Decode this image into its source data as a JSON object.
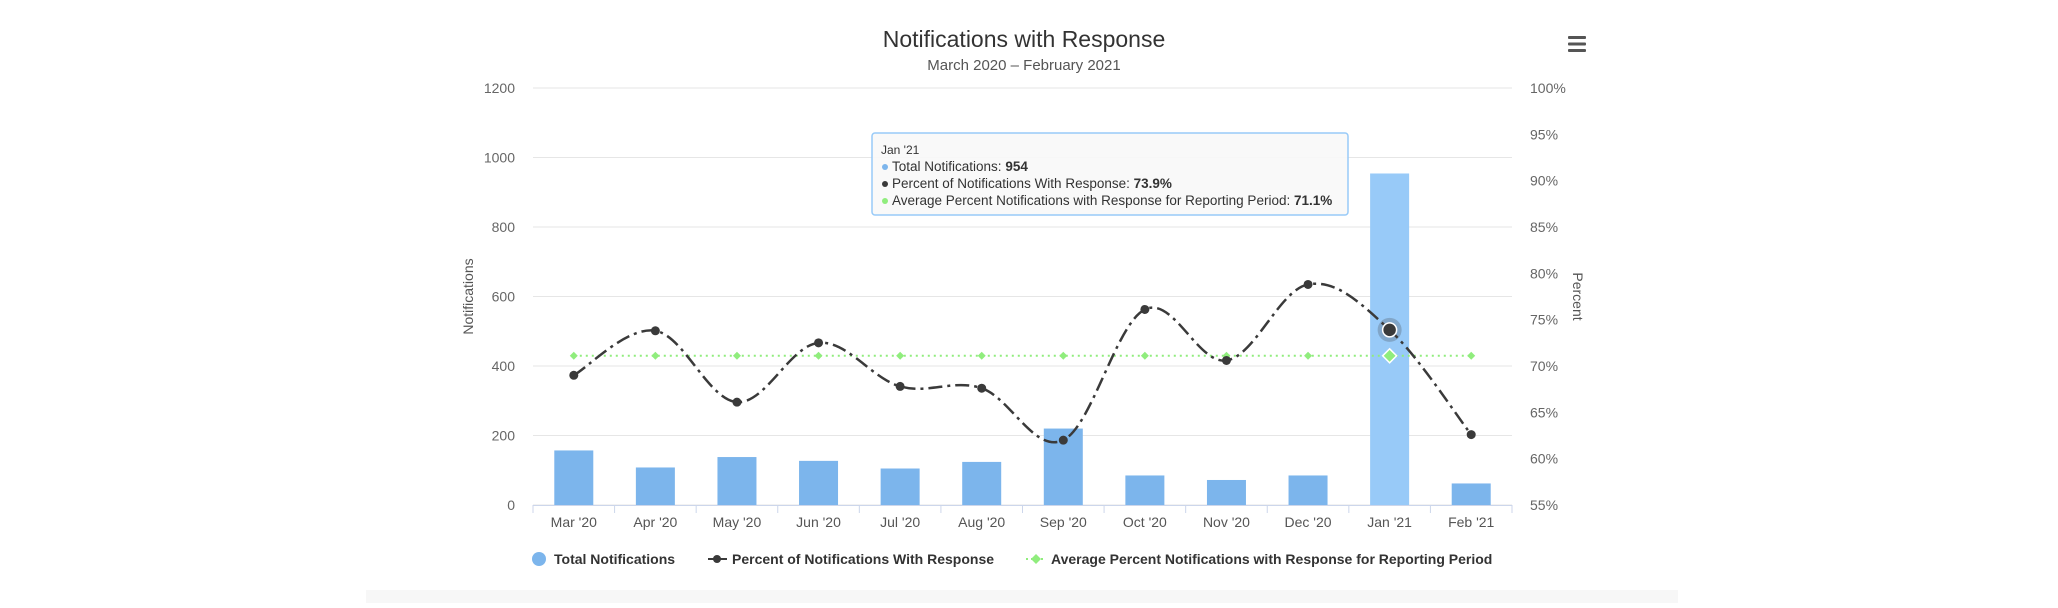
{
  "chart_data": {
    "type": "bar",
    "title": "Notifications with Response",
    "subtitle": "March 2020 – February 2021",
    "categories": [
      "Mar '20",
      "Apr '20",
      "May '20",
      "Jun '20",
      "Jul '20",
      "Aug '20",
      "Sep '20",
      "Oct '20",
      "Nov '20",
      "Dec '20",
      "Jan '21",
      "Feb '21"
    ],
    "y_left": {
      "label": "Notifications",
      "range": [
        0,
        1200
      ],
      "ticks": [
        "0",
        "200",
        "400",
        "600",
        "800",
        "1000",
        "1200"
      ],
      "tick_values": [
        0,
        200,
        400,
        600,
        800,
        1000,
        1200
      ]
    },
    "y_right": {
      "label": "Percent",
      "range": [
        55,
        100
      ],
      "ticks": [
        "55%",
        "60%",
        "65%",
        "70%",
        "75%",
        "80%",
        "85%",
        "90%",
        "95%",
        "100%"
      ],
      "tick_values": [
        55,
        60,
        65,
        70,
        75,
        80,
        85,
        90,
        95,
        100
      ]
    },
    "grid": true,
    "legend_position": "bottom",
    "series": [
      {
        "name": "Total Notifications",
        "type": "column",
        "axis": "left",
        "color": "#7cb5ec",
        "highlight_color": "#98caf8",
        "values": [
          157,
          108,
          138,
          127,
          105,
          124,
          220,
          85,
          72,
          85,
          954,
          62
        ]
      },
      {
        "name": "Percent of Notifications With Response",
        "type": "spline",
        "axis": "right",
        "color": "#3a3a3a",
        "dash": "dashdot",
        "values": [
          69.0,
          73.8,
          66.1,
          72.5,
          67.8,
          67.6,
          62.0,
          76.1,
          70.6,
          78.8,
          73.9,
          62.6
        ]
      },
      {
        "name": "Average Percent Notifications with Response for Reporting Period",
        "type": "line",
        "axis": "right",
        "color": "#90ed7d",
        "dash": "dot",
        "values": [
          71.1,
          71.1,
          71.1,
          71.1,
          71.1,
          71.1,
          71.1,
          71.1,
          71.1,
          71.1,
          71.1,
          71.1
        ]
      }
    ],
    "highlight_index": 10,
    "tooltip": {
      "header": "Jan '21",
      "rows": [
        {
          "label": "Total Notifications: ",
          "value": "954",
          "color": "#7cb5ec"
        },
        {
          "label": "Percent of Notifications With Response: ",
          "value": "73.9%",
          "color": "#3a3a3a"
        },
        {
          "label": "Average Percent Notifications with Response for Reporting Period: ",
          "value": "71.1%",
          "color": "#90ed7d"
        }
      ]
    }
  },
  "menu": {
    "icon": "hamburger-menu-icon"
  }
}
